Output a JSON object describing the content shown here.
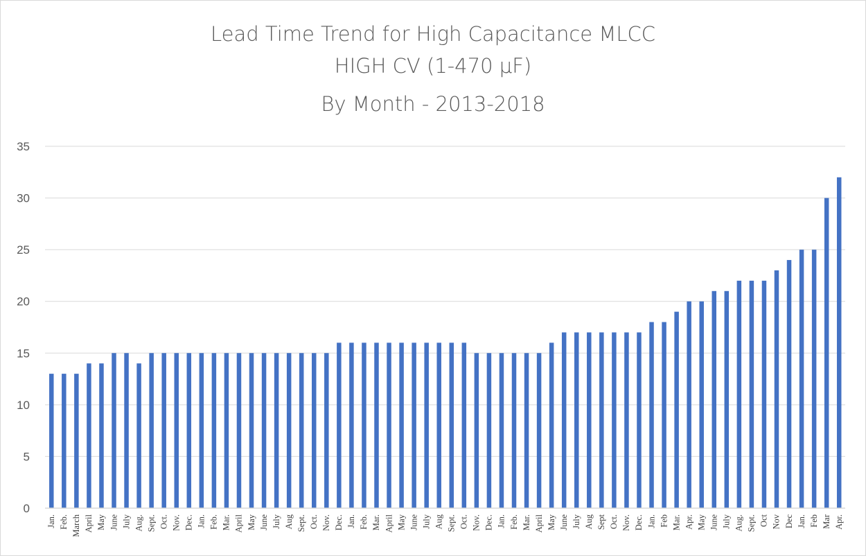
{
  "chart_data": {
    "type": "bar",
    "title": [
      "Lead Time Trend for High Capacitance MLCC",
      "HIGH CV (1-470 µF)",
      "By Month - 2013-2018"
    ],
    "xlabel": "",
    "ylabel": "",
    "ylim": [
      0,
      35
    ],
    "yticks": [
      0,
      5,
      10,
      15,
      20,
      25,
      30,
      35
    ],
    "grid": true,
    "bar_color": "#4472c4",
    "categories": [
      "Jan.",
      "Feb.",
      "March",
      "April",
      "May",
      "June",
      "July",
      "Aug.",
      "Sept.",
      "Oct.",
      "Nov.",
      "Dec.",
      "Jan.",
      "Feb.",
      "Mar.",
      "April",
      "May",
      "June",
      "July",
      "Aug",
      "Sept.",
      "Oct.",
      "Nov.",
      "Dec.",
      "Jan.",
      "Feb.",
      "Mar.",
      "April",
      "May",
      "June",
      "July",
      "Aug",
      "Sept.",
      "Oct.",
      "Nov.",
      "Dec.",
      "Jan.",
      "Feb.",
      "Mar.",
      "April",
      "May",
      "June",
      "July",
      "Aug",
      "Sept",
      "Oct.",
      "Nov.",
      "Dec.",
      "Jan.",
      "Feb",
      "Mar.",
      "Apr.",
      "May",
      "June",
      "July",
      "Aug.",
      "Sept.",
      "Oct",
      "Nov",
      "Dec",
      "Jan.",
      "Feb",
      "Mar",
      "Apr."
    ],
    "values": [
      13,
      13,
      13,
      14,
      14,
      15,
      15,
      14,
      15,
      15,
      15,
      15,
      15,
      15,
      15,
      15,
      15,
      15,
      15,
      15,
      15,
      15,
      15,
      16,
      16,
      16,
      16,
      16,
      16,
      16,
      16,
      16,
      16,
      16,
      15,
      15,
      15,
      15,
      15,
      15,
      16,
      17,
      17,
      17,
      17,
      17,
      17,
      17,
      18,
      18,
      19,
      20,
      20,
      21,
      21,
      22,
      22,
      22,
      23,
      24,
      25,
      25,
      30,
      32
    ]
  }
}
